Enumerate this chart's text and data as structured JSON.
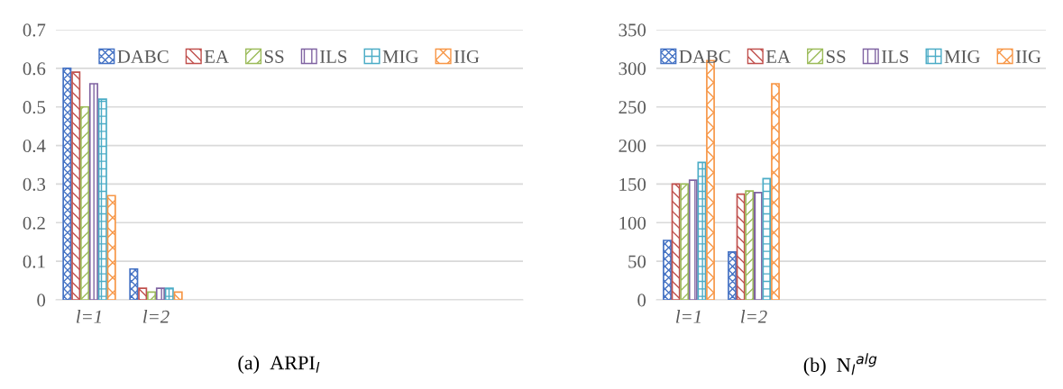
{
  "chart_data": [
    {
      "type": "bar",
      "title": "(a)  ARPI$_{l}$",
      "categories": [
        "l=1",
        "l=2",
        null,
        null,
        null,
        null,
        null
      ],
      "ylim": [
        0,
        0.7
      ],
      "yticks": [
        {
          "value": 0,
          "label": "0"
        },
        0.1,
        0.2,
        0.3,
        0.4,
        0.5,
        0.6,
        0.7
      ],
      "grid": "y",
      "legend": "top",
      "series": [
        {
          "name": "DABC",
          "color": "#4472c4",
          "values": [
            0.6,
            0.08,
            null,
            null,
            null,
            null,
            null
          ]
        },
        {
          "name": "EA",
          "color": "#c0504d",
          "values": [
            0.59,
            0.03,
            null,
            null,
            null,
            null,
            null
          ]
        },
        {
          "name": "SS",
          "color": "#9bbb59",
          "values": [
            0.5,
            0.02,
            null,
            null,
            null,
            null,
            null
          ]
        },
        {
          "name": "ILS",
          "color": "#8064a2",
          "values": [
            0.56,
            0.03,
            null,
            null,
            null,
            null,
            null
          ]
        },
        {
          "name": "MIG",
          "color": "#4bacc6",
          "values": [
            0.52,
            0.03,
            null,
            null,
            null,
            null,
            null
          ]
        },
        {
          "name": "IIG",
          "color": "#f79646",
          "values": [
            0.27,
            0.02,
            null,
            null,
            null,
            null,
            null
          ]
        }
      ]
    },
    {
      "type": "bar",
      "title": "(b)  N$_{l}$$^{alg}$",
      "categories": [
        "l=1",
        "l=2",
        null,
        null,
        null,
        null
      ],
      "ylim": [
        0,
        350
      ],
      "yticks": [
        0,
        50,
        100,
        150,
        200,
        250,
        300,
        350
      ],
      "grid": "y",
      "legend": "top",
      "series": [
        {
          "name": "DABC",
          "color": "#4472c4",
          "values": [
            77,
            62,
            null,
            null,
            null,
            null
          ]
        },
        {
          "name": "EA",
          "color": "#c0504d",
          "values": [
            150,
            137,
            null,
            null,
            null,
            null
          ]
        },
        {
          "name": "SS",
          "color": "#9bbb59",
          "values": [
            150,
            141,
            null,
            null,
            null,
            null
          ]
        },
        {
          "name": "ILS",
          "color": "#8064a2",
          "values": [
            155,
            139,
            null,
            null,
            null,
            null
          ]
        },
        {
          "name": "MIG",
          "color": "#4bacc6",
          "values": [
            178,
            157,
            null,
            null,
            null,
            null
          ]
        },
        {
          "name": "IIG",
          "color": "#f79646",
          "values": [
            310,
            280,
            null,
            null,
            null,
            null
          ]
        }
      ]
    }
  ]
}
